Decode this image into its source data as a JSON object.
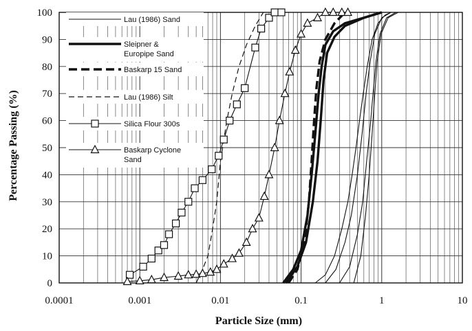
{
  "chart_data": {
    "type": "line",
    "xlabel": "Particle Size (mm)",
    "ylabel": "Percentage Passing (%)",
    "xscale": "log",
    "xlim": [
      0.0001,
      10
    ],
    "ylim": [
      0,
      100
    ],
    "x_ticks": [
      "0.0001",
      "0.001",
      "0.01",
      "0.1",
      "1",
      "10"
    ],
    "y_ticks": [
      "0",
      "10",
      "20",
      "30",
      "40",
      "50",
      "60",
      "70",
      "80",
      "90",
      "100"
    ],
    "grid": true,
    "legend_position": "top-left",
    "series": [
      {
        "name": "Lau (1986) Sand",
        "style": "thin-solid",
        "curves": [
          [
            [
              0.15,
              0
            ],
            [
              0.2,
              3
            ],
            [
              0.26,
              10
            ],
            [
              0.32,
              20
            ],
            [
              0.38,
              30
            ],
            [
              0.43,
              40
            ],
            [
              0.48,
              50
            ],
            [
              0.53,
              60
            ],
            [
              0.59,
              70
            ],
            [
              0.66,
              80
            ],
            [
              0.76,
              90
            ],
            [
              0.9,
              96
            ],
            [
              1.1,
              99
            ],
            [
              1.3,
              100
            ]
          ],
          [
            [
              0.2,
              0
            ],
            [
              0.27,
              5
            ],
            [
              0.35,
              15
            ],
            [
              0.42,
              25
            ],
            [
              0.5,
              40
            ],
            [
              0.57,
              55
            ],
            [
              0.64,
              70
            ],
            [
              0.72,
              82
            ],
            [
              0.82,
              92
            ],
            [
              1.0,
              98
            ],
            [
              1.3,
              100
            ]
          ],
          [
            [
              0.3,
              0
            ],
            [
              0.4,
              6
            ],
            [
              0.5,
              18
            ],
            [
              0.58,
              30
            ],
            [
              0.65,
              45
            ],
            [
              0.72,
              58
            ],
            [
              0.78,
              70
            ],
            [
              0.85,
              82
            ],
            [
              0.95,
              92
            ],
            [
              1.15,
              98
            ],
            [
              1.5,
              100
            ]
          ],
          [
            [
              0.45,
              0
            ],
            [
              0.55,
              10
            ],
            [
              0.63,
              25
            ],
            [
              0.7,
              40
            ],
            [
              0.76,
              55
            ],
            [
              0.82,
              70
            ],
            [
              0.88,
              82
            ],
            [
              0.98,
              92
            ],
            [
              1.2,
              98
            ],
            [
              1.6,
              100
            ]
          ]
        ]
      },
      {
        "name": "Sleipner & Europipe Sand",
        "style": "thick-solid",
        "curves": [
          [
            [
              0.06,
              0
            ],
            [
              0.08,
              5
            ],
            [
              0.1,
              12
            ],
            [
              0.12,
              25
            ],
            [
              0.135,
              40
            ],
            [
              0.15,
              55
            ],
            [
              0.165,
              70
            ],
            [
              0.18,
              80
            ],
            [
              0.2,
              88
            ],
            [
              0.25,
              93
            ],
            [
              0.35,
              96
            ],
            [
              0.6,
              98
            ],
            [
              1.0,
              100
            ]
          ],
          [
            [
              0.065,
              0
            ],
            [
              0.09,
              6
            ],
            [
              0.115,
              15
            ],
            [
              0.14,
              30
            ],
            [
              0.16,
              45
            ],
            [
              0.175,
              60
            ],
            [
              0.19,
              75
            ],
            [
              0.21,
              85
            ],
            [
              0.26,
              91
            ],
            [
              0.35,
              95
            ],
            [
              0.6,
              98
            ],
            [
              1.0,
              100
            ]
          ]
        ]
      },
      {
        "name": "Baskarp 15 Sand",
        "style": "thick-dashed",
        "curves": [
          [
            [
              0.07,
              0
            ],
            [
              0.09,
              5
            ],
            [
              0.11,
              15
            ],
            [
              0.125,
              30
            ],
            [
              0.135,
              45
            ],
            [
              0.145,
              60
            ],
            [
              0.155,
              72
            ],
            [
              0.17,
              82
            ],
            [
              0.2,
              90
            ],
            [
              0.26,
              96
            ],
            [
              0.35,
              100
            ]
          ]
        ]
      },
      {
        "name": "Lau (1986) Silt",
        "style": "thin-dashed",
        "curves": [
          [
            [
              0.005,
              0
            ],
            [
              0.006,
              5
            ],
            [
              0.007,
              10
            ],
            [
              0.008,
              20
            ],
            [
              0.009,
              30
            ],
            [
              0.01,
              45
            ],
            [
              0.012,
              60
            ],
            [
              0.014,
              70
            ],
            [
              0.017,
              80
            ],
            [
              0.021,
              88
            ],
            [
              0.027,
              95
            ],
            [
              0.034,
              100
            ]
          ]
        ]
      },
      {
        "name": "Silica Flour 300s",
        "style": "square-markers",
        "points": [
          [
            0.00075,
            3
          ],
          [
            0.0011,
            6
          ],
          [
            0.0014,
            9
          ],
          [
            0.0017,
            12
          ],
          [
            0.002,
            14
          ],
          [
            0.0023,
            18
          ],
          [
            0.0028,
            22
          ],
          [
            0.0033,
            26
          ],
          [
            0.004,
            30
          ],
          [
            0.0048,
            35
          ],
          [
            0.006,
            38
          ],
          [
            0.0078,
            42
          ],
          [
            0.0095,
            47
          ],
          [
            0.011,
            53
          ],
          [
            0.013,
            60
          ],
          [
            0.016,
            66
          ],
          [
            0.02,
            72
          ],
          [
            0.027,
            87
          ],
          [
            0.032,
            94
          ],
          [
            0.04,
            98
          ],
          [
            0.047,
            100
          ],
          [
            0.057,
            100
          ]
        ]
      },
      {
        "name": "Baskarp Cyclone Sand",
        "style": "triangle-markers",
        "points": [
          [
            0.0007,
            0.5
          ],
          [
            0.001,
            0.8
          ],
          [
            0.0014,
            1.2
          ],
          [
            0.002,
            2
          ],
          [
            0.003,
            2.5
          ],
          [
            0.004,
            3
          ],
          [
            0.005,
            3.2
          ],
          [
            0.006,
            3.5
          ],
          [
            0.0075,
            4
          ],
          [
            0.009,
            5
          ],
          [
            0.011,
            7
          ],
          [
            0.014,
            9
          ],
          [
            0.017,
            11
          ],
          [
            0.021,
            15
          ],
          [
            0.025,
            20
          ],
          [
            0.03,
            24
          ],
          [
            0.035,
            32
          ],
          [
            0.04,
            40
          ],
          [
            0.047,
            50
          ],
          [
            0.054,
            60
          ],
          [
            0.063,
            70
          ],
          [
            0.072,
            78
          ],
          [
            0.085,
            86
          ],
          [
            0.1,
            92
          ],
          [
            0.12,
            96
          ],
          [
            0.16,
            98
          ],
          [
            0.2,
            100
          ],
          [
            0.25,
            100
          ],
          [
            0.32,
            100
          ],
          [
            0.38,
            100
          ]
        ]
      }
    ]
  }
}
